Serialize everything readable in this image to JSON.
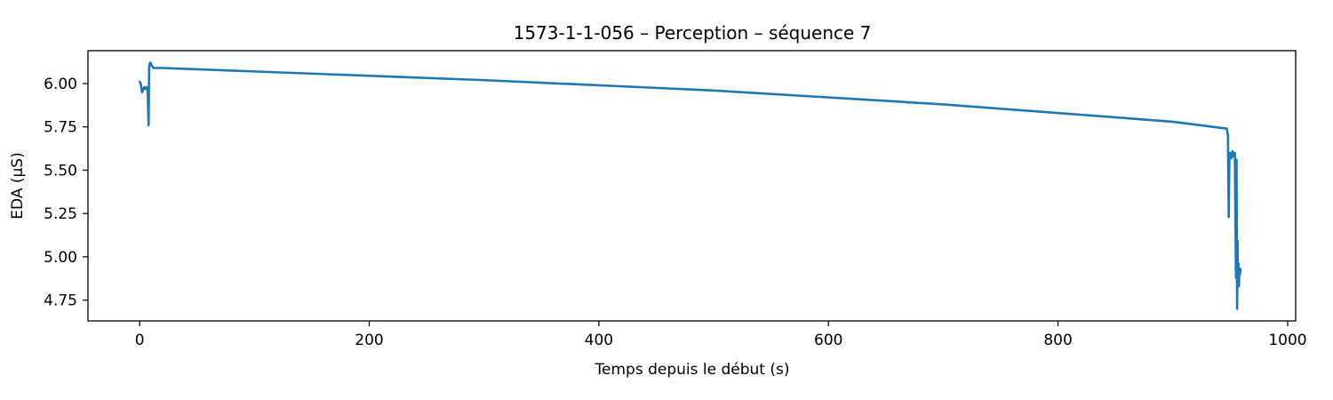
{
  "chart_data": {
    "type": "line",
    "title": "1573-1-1-056 – Perception – séquence 7",
    "xlabel": "Temps depuis le début (s)",
    "ylabel": "EDA (µS)",
    "xlim": [
      -45,
      1007
    ],
    "ylim": [
      4.63,
      6.19
    ],
    "xticks": [
      0,
      200,
      400,
      600,
      800,
      1000
    ],
    "yticks": [
      4.75,
      5.0,
      5.25,
      5.5,
      5.75,
      6.0
    ],
    "xtick_labels": [
      "0",
      "200",
      "400",
      "600",
      "800",
      "1000"
    ],
    "ytick_labels": [
      "4.75",
      "5.00",
      "5.25",
      "5.50",
      "5.75",
      "6.00"
    ],
    "grid": false,
    "legend": false,
    "color": "#1f77b4",
    "series": [
      {
        "x": [
          0,
          1,
          2,
          3,
          4,
          5,
          6,
          7,
          7.8,
          8.3,
          9,
          9.5,
          10,
          11,
          12,
          13,
          15,
          20,
          100,
          300,
          500,
          700,
          900,
          947,
          948,
          948.7,
          949.2,
          949.5,
          950,
          951,
          952,
          953,
          954,
          955,
          955.5,
          956,
          956.4,
          956.8,
          957.2,
          957.6,
          958,
          958.5,
          959
        ],
        "y": [
          6.01,
          6.0,
          5.95,
          5.96,
          5.98,
          5.97,
          5.98,
          5.96,
          5.76,
          6.1,
          6.12,
          6.12,
          6.11,
          6.1,
          6.09,
          6.09,
          6.09,
          6.09,
          6.07,
          6.02,
          5.96,
          5.88,
          5.78,
          5.74,
          5.7,
          5.23,
          5.55,
          5.58,
          5.6,
          5.57,
          5.61,
          5.58,
          5.6,
          4.88,
          5.56,
          4.7,
          5.09,
          4.86,
          4.96,
          4.83,
          4.93,
          4.9,
          4.93
        ]
      }
    ]
  }
}
